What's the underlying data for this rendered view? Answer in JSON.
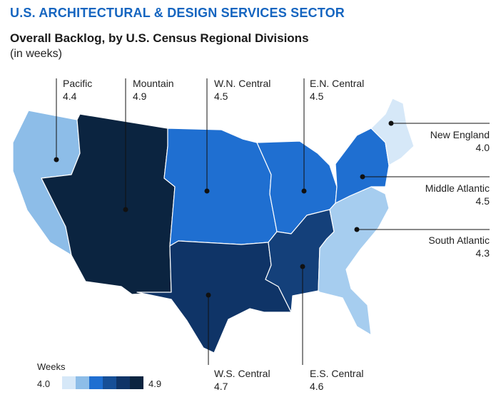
{
  "header": {
    "sector": "U.S. ARCHITECTURAL & DESIGN SERVICES SECTOR",
    "title": "Overall Backlog, by U.S. Census Regional Divisions",
    "subtitle": "(in weeks)"
  },
  "regions": {
    "pacific": {
      "name": "Pacific",
      "value": "4.4",
      "color": "#8dbde8"
    },
    "mountain": {
      "name": "Mountain",
      "value": "4.9",
      "color": "#0b2440"
    },
    "wn_central": {
      "name": "W.N. Central",
      "value": "4.5",
      "color": "#1f6fd1"
    },
    "en_central": {
      "name": "E.N. Central",
      "value": "4.5",
      "color": "#1f6fd1"
    },
    "new_england": {
      "name": "New England",
      "value": "4.0",
      "color": "#d6e8f8"
    },
    "middle_atlantic": {
      "name": "Middle Atlantic",
      "value": "4.5",
      "color": "#1f6fd1"
    },
    "south_atlantic": {
      "name": "South Atlantic",
      "value": "4.3",
      "color": "#a6cdef"
    },
    "ws_central": {
      "name": "W.S. Central",
      "value": "4.7",
      "color": "#0f3467"
    },
    "es_central": {
      "name": "E.S. Central",
      "value": "4.6",
      "color": "#14407a"
    }
  },
  "legend": {
    "title": "Weeks",
    "min": "4.0",
    "max": "4.9",
    "colors": [
      "#d6e8f8",
      "#8dbde8",
      "#1f6fd1",
      "#164f97",
      "#0f3467",
      "#0b2440"
    ]
  }
}
